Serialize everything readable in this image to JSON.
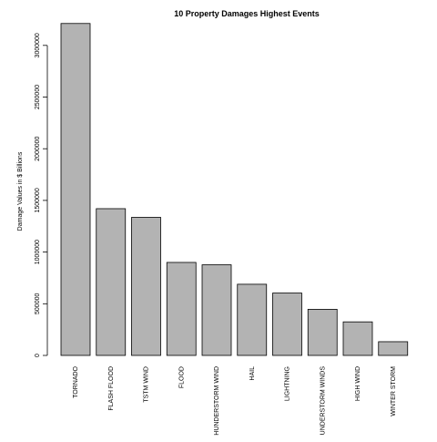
{
  "chart_data": {
    "type": "bar",
    "title": "10 Property Damages Highest Events",
    "xlabel": "",
    "ylabel": "Damage Values in $ Billions",
    "ylim": [
      0,
      3210000
    ],
    "yticks": [
      0,
      500000,
      1000000,
      1500000,
      2000000,
      2500000,
      3000000
    ],
    "ytick_labels": [
      "0",
      "500000",
      "1000000",
      "1500000",
      "2000000",
      "2500000",
      "3000000"
    ],
    "categories": [
      "TORNADO",
      "FLASH FLOOD",
      "TSTM WIND",
      "FLOOD",
      "HUNDERSTORM WIND",
      "HAIL",
      "LIGHTNING",
      "UNDERSTORM WINDS",
      "HIGH WIND",
      "WINTER STORM"
    ],
    "values": [
      3212000,
      1420000,
      1336000,
      899900,
      876800,
      688700,
      603400,
      446300,
      324700,
      132700
    ],
    "grid": false,
    "legend": "none",
    "bar_color": "#b3b3b3"
  }
}
